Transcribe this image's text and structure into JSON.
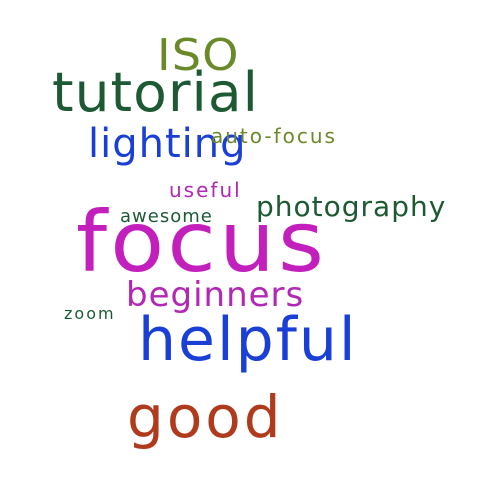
{
  "words": [
    {
      "key": "iso",
      "text": "ISO",
      "color": "#6a8a2a"
    },
    {
      "key": "tutorial",
      "text": "tutorial",
      "color": "#1d5a34"
    },
    {
      "key": "lighting",
      "text": "lighting",
      "color": "#1a3fd6"
    },
    {
      "key": "autofocus",
      "text": "auto-focus",
      "color": "#6a8a2a"
    },
    {
      "key": "useful",
      "text": "useful",
      "color": "#b227b5"
    },
    {
      "key": "photography",
      "text": "photography",
      "color": "#1d5a34"
    },
    {
      "key": "awesome",
      "text": "awesome",
      "color": "#1d5a34"
    },
    {
      "key": "focus",
      "text": "focus",
      "color": "#c21fbd"
    },
    {
      "key": "beginners",
      "text": "beginners",
      "color": "#b227b5"
    },
    {
      "key": "zoom",
      "text": "zoom",
      "color": "#1d5a34"
    },
    {
      "key": "helpful",
      "text": "helpful",
      "color": "#1a3fd6"
    },
    {
      "key": "good",
      "text": "good",
      "color": "#b03a1c"
    }
  ]
}
